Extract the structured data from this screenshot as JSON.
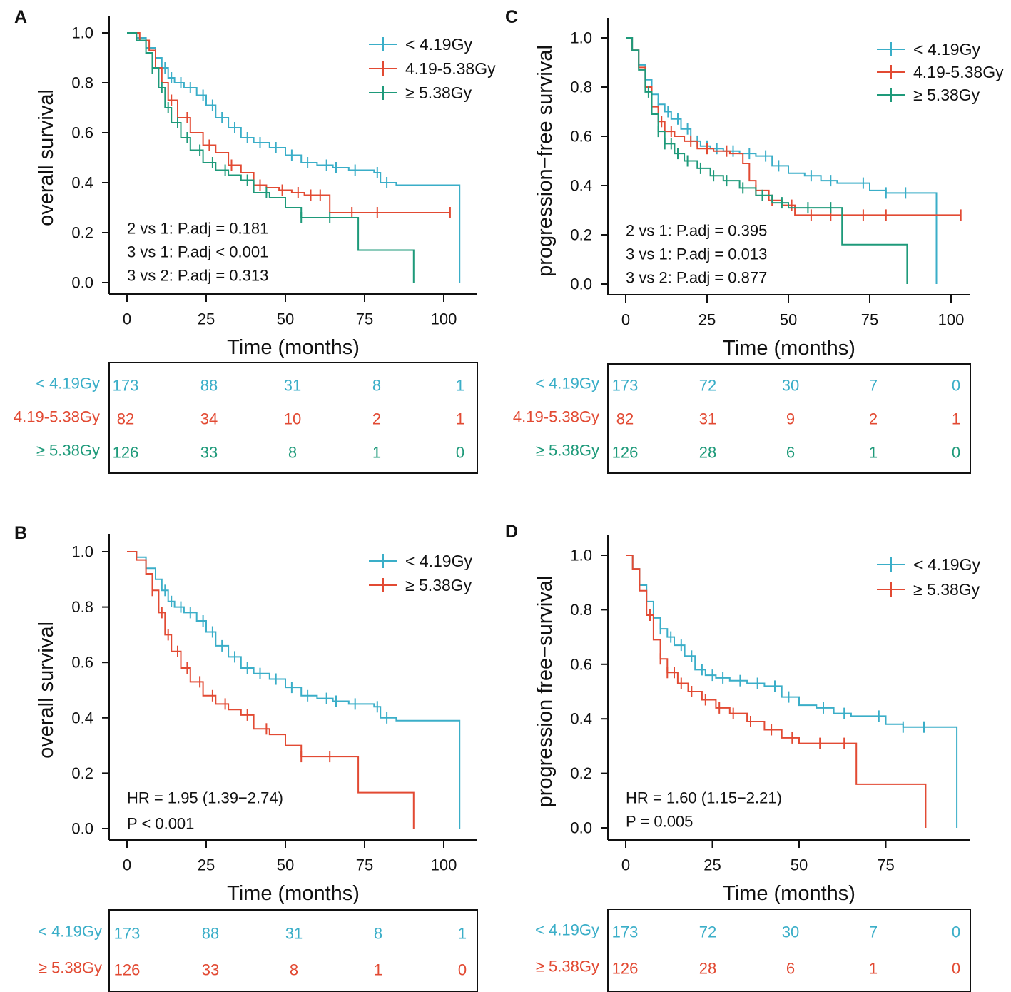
{
  "colors": {
    "blue": "#3aaec8",
    "red": "#e24a33",
    "green": "#1e9a7a",
    "black": "#111111"
  },
  "chart_data": [
    {
      "panel": "A",
      "type": "line",
      "title": "",
      "xlabel": "Time (months)",
      "ylabel": "overall survival",
      "xlim": [
        0,
        105
      ],
      "ylim": [
        0,
        1
      ],
      "xticks": [
        "0",
        "25",
        "50",
        "75",
        "100"
      ],
      "yticks": [
        "0.0",
        "0.2",
        "0.4",
        "0.6",
        "0.8",
        "1.0"
      ],
      "legend": [
        "< 4.19Gy",
        "4.19-5.38Gy",
        "≥ 5.38Gy"
      ],
      "annotations": [
        "2 vs 1: P.adj = 0.181",
        "3 vs 1: P.adj < 0.001",
        "3 vs 2: P.adj = 0.313"
      ],
      "series": [
        {
          "name": "< 4.19Gy",
          "color": "blue",
          "x": [
            0,
            3,
            6,
            9,
            11,
            13,
            15,
            18,
            22,
            25,
            28,
            32,
            36,
            40,
            45,
            50,
            55,
            60,
            65,
            70,
            75,
            78,
            80,
            85,
            90,
            95,
            100,
            105
          ],
          "y": [
            1.0,
            0.98,
            0.94,
            0.9,
            0.86,
            0.82,
            0.8,
            0.78,
            0.75,
            0.71,
            0.66,
            0.62,
            0.58,
            0.56,
            0.54,
            0.51,
            0.48,
            0.47,
            0.46,
            0.45,
            0.45,
            0.44,
            0.4,
            0.39,
            0.39,
            0.39,
            0.39,
            0.0
          ],
          "censor_x": [
            12,
            14,
            17,
            20,
            24,
            27,
            30,
            34,
            38,
            42,
            47,
            52,
            57,
            63,
            66,
            72,
            79,
            82
          ]
        },
        {
          "name": "4.19-5.38Gy",
          "color": "red",
          "x": [
            0,
            4,
            7,
            9,
            11,
            13,
            16,
            20,
            24,
            28,
            32,
            36,
            40,
            44,
            48,
            52,
            56,
            60,
            64,
            70,
            80,
            90,
            102
          ],
          "y": [
            1.0,
            0.97,
            0.93,
            0.86,
            0.8,
            0.73,
            0.66,
            0.6,
            0.55,
            0.52,
            0.47,
            0.44,
            0.39,
            0.38,
            0.37,
            0.36,
            0.35,
            0.35,
            0.28,
            0.28,
            0.28,
            0.28,
            0.28
          ],
          "censor_x": [
            14,
            19,
            26,
            33,
            42,
            49,
            54,
            58,
            61,
            71,
            79,
            102
          ]
        },
        {
          "name": "≥ 5.38Gy",
          "color": "green",
          "x": [
            0,
            3,
            6,
            8,
            10,
            12,
            14,
            17,
            20,
            24,
            28,
            32,
            36,
            40,
            45,
            50,
            55,
            60,
            65,
            73,
            80,
            90,
            90.5
          ],
          "y": [
            1.0,
            0.97,
            0.92,
            0.86,
            0.78,
            0.7,
            0.64,
            0.58,
            0.53,
            0.48,
            0.45,
            0.43,
            0.41,
            0.36,
            0.34,
            0.3,
            0.26,
            0.26,
            0.26,
            0.13,
            0.13,
            0.13,
            0.0
          ],
          "censor_x": [
            8,
            11,
            13,
            16,
            19,
            23,
            27,
            31,
            38,
            44,
            55,
            64
          ]
        }
      ],
      "risk_table": {
        "rows": [
          {
            "label": "< 4.19Gy",
            "color": "blue",
            "values": [
              "173",
              "88",
              "31",
              "8",
              "1"
            ]
          },
          {
            "label": "4.19-5.38Gy",
            "color": "red",
            "values": [
              "82",
              "34",
              "10",
              "2",
              "1"
            ]
          },
          {
            "label": "≥ 5.38Gy",
            "color": "green",
            "values": [
              "126",
              "33",
              "8",
              "1",
              "0"
            ]
          }
        ]
      }
    },
    {
      "panel": "B",
      "type": "line",
      "title": "",
      "xlabel": "Time (months)",
      "ylabel": "overall survival",
      "xlim": [
        0,
        105
      ],
      "ylim": [
        0,
        1
      ],
      "xticks": [
        "0",
        "25",
        "50",
        "75",
        "100"
      ],
      "yticks": [
        "0.0",
        "0.2",
        "0.4",
        "0.6",
        "0.8",
        "1.0"
      ],
      "legend": [
        "< 4.19Gy",
        "≥ 5.38Gy"
      ],
      "annotations": [
        "HR = 1.95 (1.39−2.74)",
        "P < 0.001"
      ],
      "series": [
        {
          "name": "< 4.19Gy",
          "color": "blue",
          "x": [
            0,
            3,
            6,
            9,
            11,
            13,
            15,
            18,
            22,
            25,
            28,
            32,
            36,
            40,
            45,
            50,
            55,
            60,
            65,
            70,
            75,
            78,
            80,
            85,
            90,
            95,
            100,
            105
          ],
          "y": [
            1.0,
            0.98,
            0.94,
            0.9,
            0.86,
            0.82,
            0.8,
            0.78,
            0.75,
            0.71,
            0.66,
            0.62,
            0.58,
            0.56,
            0.54,
            0.51,
            0.48,
            0.47,
            0.46,
            0.45,
            0.45,
            0.44,
            0.4,
            0.39,
            0.39,
            0.39,
            0.39,
            0.0
          ],
          "censor_x": [
            12,
            14,
            17,
            20,
            24,
            27,
            30,
            34,
            38,
            42,
            47,
            52,
            57,
            63,
            66,
            72,
            79,
            82
          ]
        },
        {
          "name": "≥ 5.38Gy",
          "color": "red",
          "x": [
            0,
            3,
            6,
            8,
            10,
            12,
            14,
            17,
            20,
            24,
            28,
            32,
            36,
            40,
            45,
            50,
            55,
            60,
            65,
            73,
            80,
            90,
            90.5
          ],
          "y": [
            1.0,
            0.97,
            0.92,
            0.86,
            0.78,
            0.7,
            0.64,
            0.58,
            0.53,
            0.48,
            0.45,
            0.43,
            0.41,
            0.36,
            0.34,
            0.3,
            0.26,
            0.26,
            0.26,
            0.13,
            0.13,
            0.13,
            0.0
          ],
          "censor_x": [
            8,
            11,
            13,
            16,
            19,
            23,
            27,
            31,
            38,
            44,
            55,
            64
          ]
        }
      ],
      "risk_table": {
        "rows": [
          {
            "label": "< 4.19Gy",
            "color": "blue",
            "values": [
              "173",
              "88",
              "31",
              "8",
              "1"
            ]
          },
          {
            "label": "≥ 5.38Gy",
            "color": "red",
            "values": [
              "126",
              "33",
              "8",
              "1",
              "0"
            ]
          }
        ]
      }
    },
    {
      "panel": "C",
      "type": "line",
      "title": "",
      "xlabel": "Time (months)",
      "ylabel": "progression−free survival",
      "xlim": [
        0,
        103
      ],
      "ylim": [
        0,
        1
      ],
      "xticks": [
        "0",
        "25",
        "50",
        "75",
        "100"
      ],
      "yticks": [
        "0.0",
        "0.2",
        "0.4",
        "0.6",
        "0.8",
        "1.0"
      ],
      "legend": [
        "< 4.19Gy",
        "4.19-5.38Gy",
        "≥ 5.38Gy"
      ],
      "annotations": [
        "2 vs 1: P.adj = 0.395",
        "3 vs 1: P.adj = 0.013",
        "3 vs 2: P.adj = 0.877"
      ],
      "series": [
        {
          "name": "< 4.19Gy",
          "color": "blue",
          "x": [
            0,
            2,
            4,
            6,
            8,
            10,
            12,
            14,
            17,
            20,
            23,
            26,
            30,
            35,
            40,
            45,
            50,
            55,
            60,
            65,
            70,
            75,
            80,
            85,
            90,
            95.5
          ],
          "y": [
            1.0,
            0.95,
            0.89,
            0.83,
            0.77,
            0.73,
            0.7,
            0.67,
            0.63,
            0.58,
            0.56,
            0.55,
            0.54,
            0.53,
            0.52,
            0.48,
            0.45,
            0.44,
            0.42,
            0.41,
            0.41,
            0.38,
            0.37,
            0.37,
            0.37,
            0.0
          ],
          "censor_x": [
            10,
            13,
            16,
            19,
            22,
            25,
            28,
            33,
            38,
            43,
            47,
            57,
            63,
            73,
            80,
            86
          ]
        },
        {
          "name": "4.19-5.38Gy",
          "color": "red",
          "x": [
            0,
            2,
            4,
            6,
            8,
            10,
            12,
            15,
            18,
            22,
            27,
            32,
            36,
            38,
            40,
            44,
            48,
            52,
            60,
            70,
            80,
            90,
            103
          ],
          "y": [
            1.0,
            0.95,
            0.88,
            0.8,
            0.72,
            0.66,
            0.62,
            0.6,
            0.58,
            0.55,
            0.54,
            0.53,
            0.49,
            0.42,
            0.38,
            0.34,
            0.32,
            0.28,
            0.28,
            0.28,
            0.28,
            0.28,
            0.28
          ],
          "censor_x": [
            11,
            14,
            20,
            25,
            31,
            40,
            45,
            51,
            57,
            63,
            73,
            80,
            103
          ]
        },
        {
          "name": "≥ 5.38Gy",
          "color": "green",
          "x": [
            0,
            2,
            4,
            6,
            8,
            10,
            12,
            15,
            18,
            22,
            26,
            30,
            35,
            40,
            45,
            50,
            55,
            60,
            66.5,
            75,
            86.5
          ],
          "y": [
            1.0,
            0.95,
            0.87,
            0.78,
            0.69,
            0.62,
            0.57,
            0.53,
            0.5,
            0.47,
            0.44,
            0.42,
            0.39,
            0.36,
            0.33,
            0.31,
            0.31,
            0.31,
            0.16,
            0.16,
            0.0
          ],
          "censor_x": [
            7,
            10,
            12,
            14,
            16,
            19,
            23,
            27,
            31,
            36,
            42,
            48,
            56,
            63
          ]
        }
      ],
      "risk_table": {
        "rows": [
          {
            "label": "< 4.19Gy",
            "color": "blue",
            "values": [
              "173",
              "72",
              "30",
              "7",
              "0"
            ]
          },
          {
            "label": "4.19-5.38Gy",
            "color": "red",
            "values": [
              "82",
              "31",
              "9",
              "2",
              "1"
            ]
          },
          {
            "label": "≥ 5.38Gy",
            "color": "green",
            "values": [
              "126",
              "28",
              "6",
              "1",
              "0"
            ]
          }
        ]
      }
    },
    {
      "panel": "D",
      "type": "line",
      "title": "",
      "xlabel": "Time (months)",
      "ylabel": "progression free−survival",
      "xlim": [
        0,
        95.5
      ],
      "ylim": [
        0,
        1
      ],
      "xticks": [
        "0",
        "25",
        "50",
        "75"
      ],
      "yticks": [
        "0.0",
        "0.2",
        "0.4",
        "0.6",
        "0.8",
        "1.0"
      ],
      "legend": [
        "< 4.19Gy",
        "≥ 5.38Gy"
      ],
      "annotations": [
        "HR = 1.60 (1.15−2.21)",
        "P = 0.005"
      ],
      "series": [
        {
          "name": "< 4.19Gy",
          "color": "blue",
          "x": [
            0,
            2,
            4,
            6,
            8,
            10,
            12,
            14,
            17,
            20,
            23,
            26,
            30,
            35,
            40,
            45,
            50,
            55,
            60,
            65,
            70,
            75,
            80,
            85,
            90,
            95.5
          ],
          "y": [
            1.0,
            0.95,
            0.89,
            0.83,
            0.77,
            0.73,
            0.7,
            0.67,
            0.63,
            0.58,
            0.56,
            0.55,
            0.54,
            0.53,
            0.52,
            0.48,
            0.45,
            0.44,
            0.42,
            0.41,
            0.41,
            0.38,
            0.37,
            0.37,
            0.37,
            0.0
          ],
          "censor_x": [
            10,
            13,
            16,
            19,
            22,
            25,
            28,
            33,
            38,
            43,
            47,
            57,
            63,
            73,
            80,
            86
          ]
        },
        {
          "name": "≥ 5.38Gy",
          "color": "red",
          "x": [
            0,
            2,
            4,
            6,
            8,
            10,
            12,
            15,
            18,
            22,
            26,
            30,
            35,
            40,
            45,
            50,
            55,
            60,
            66.5,
            75,
            86.5
          ],
          "y": [
            1.0,
            0.95,
            0.87,
            0.78,
            0.69,
            0.62,
            0.57,
            0.53,
            0.5,
            0.47,
            0.44,
            0.42,
            0.39,
            0.36,
            0.33,
            0.31,
            0.31,
            0.31,
            0.16,
            0.16,
            0.0
          ],
          "censor_x": [
            7,
            10,
            12,
            14,
            16,
            19,
            23,
            27,
            31,
            36,
            42,
            48,
            56,
            63
          ]
        }
      ],
      "risk_table": {
        "rows": [
          {
            "label": "< 4.19Gy",
            "color": "blue",
            "values": [
              "173",
              "72",
              "30",
              "7",
              "0"
            ]
          },
          {
            "label": "≥ 5.38Gy",
            "color": "red",
            "values": [
              "126",
              "28",
              "6",
              "1",
              "0"
            ]
          }
        ]
      }
    }
  ]
}
